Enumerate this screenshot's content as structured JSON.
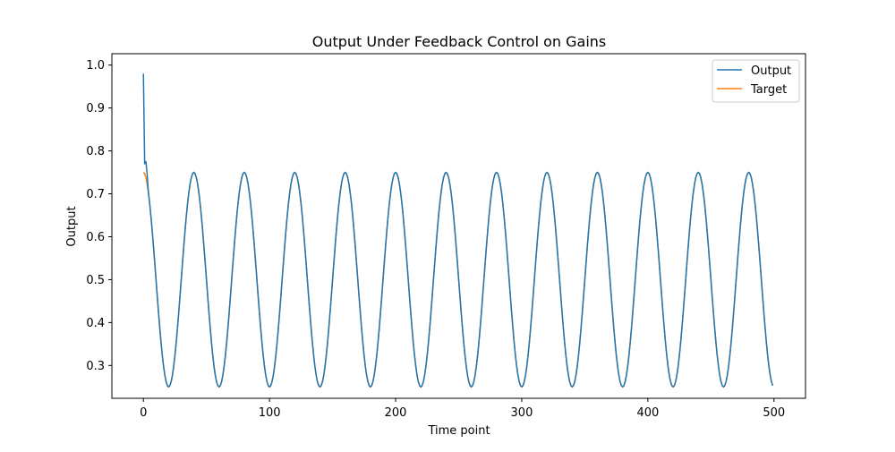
{
  "chart_data": {
    "type": "line",
    "title": "Output Under Feedback Control on Gains",
    "xlabel": "Time point",
    "ylabel": "Output",
    "xlim": [
      -25,
      525
    ],
    "ylim": [
      0.2235,
      1.0265
    ],
    "xticks": [
      0,
      100,
      200,
      300,
      400,
      500
    ],
    "yticks": [
      0.3,
      0.4,
      0.5,
      0.6,
      0.7,
      0.8,
      0.9,
      1.0
    ],
    "xtick_labels": [
      "0",
      "100",
      "200",
      "300",
      "400",
      "500"
    ],
    "ytick_labels": [
      "0.3",
      "0.4",
      "0.5",
      "0.6",
      "0.7",
      "0.8",
      "0.9",
      "1.0"
    ],
    "grid": false,
    "legend": {
      "placement": "top-right"
    },
    "x_range": [
      0,
      499
    ],
    "series": [
      {
        "name": "Output",
        "color": "#1f77b4",
        "model": "0.5 + 0.25*cos(2*pi*t/40)",
        "transient": [
          [
            0,
            0.98
          ],
          [
            1,
            0.77
          ],
          [
            2,
            0.775
          ],
          [
            3,
            0.745
          ]
        ]
      },
      {
        "name": "Target",
        "color": "#ff7f0e",
        "model": "0.5 + 0.25*cos(2*pi*t/40)"
      }
    ]
  }
}
